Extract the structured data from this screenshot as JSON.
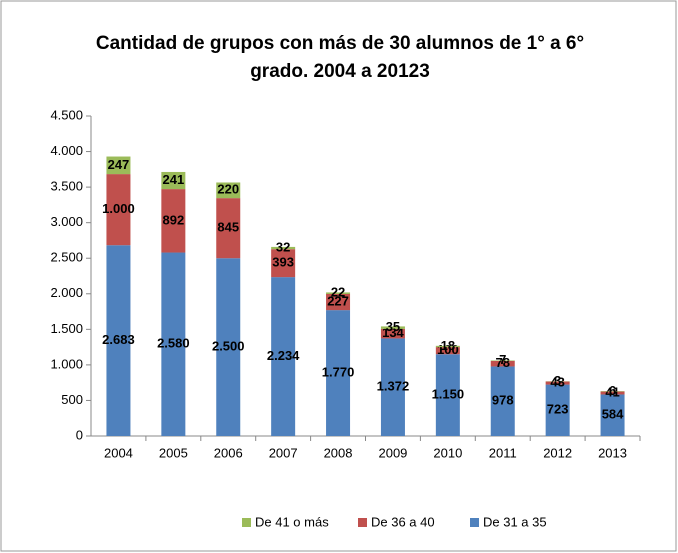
{
  "chart_data": {
    "type": "stacked_bar",
    "title": "Cantidad de grupos con más de 30 alumnos de 1° a 6° grado. 2004 a 20123",
    "categories": [
      "2004",
      "2005",
      "2006",
      "2007",
      "2008",
      "2009",
      "2010",
      "2011",
      "2012",
      "2013"
    ],
    "series": [
      {
        "name": "De 31 a 35",
        "color": "#4f81bd",
        "values": [
          2683,
          2580,
          2500,
          2234,
          1770,
          1372,
          1150,
          978,
          723,
          584
        ],
        "value_labels": [
          "2.683",
          "2.580",
          "2.500",
          "2.234",
          "1.770",
          "1.372",
          "1.150",
          "978",
          "723",
          "584"
        ]
      },
      {
        "name": "De 36 a 40",
        "color": "#c0504d",
        "values": [
          1000,
          892,
          845,
          393,
          227,
          134,
          100,
          78,
          43,
          41
        ],
        "value_labels": [
          "1.000",
          "892",
          "845",
          "393",
          "227",
          "134",
          "100",
          "78",
          "43",
          "41"
        ]
      },
      {
        "name": "De 41 o más",
        "color": "#9bbb59",
        "values": [
          247,
          241,
          220,
          32,
          22,
          35,
          18,
          7,
          3,
          6
        ],
        "value_labels": [
          "247",
          "241",
          "220",
          "32",
          "22",
          "35",
          "18",
          "7",
          "3",
          "6"
        ]
      }
    ],
    "ylim": [
      0,
      4500
    ],
    "yticks": [
      0,
      500,
      {
        "value": 1000,
        "label": "1.000"
      },
      {
        "value": 1500,
        "label": "1.500"
      },
      {
        "value": 2000,
        "label": "2.000"
      },
      {
        "value": 2500,
        "label": "2.500"
      },
      {
        "value": 3000,
        "label": "3.000"
      },
      {
        "value": 3500,
        "label": "3.500"
      },
      {
        "value": 4000,
        "label": "4.000"
      },
      {
        "value": 4500,
        "label": "4.500"
      }
    ],
    "grid": false,
    "legend": "bottom"
  }
}
